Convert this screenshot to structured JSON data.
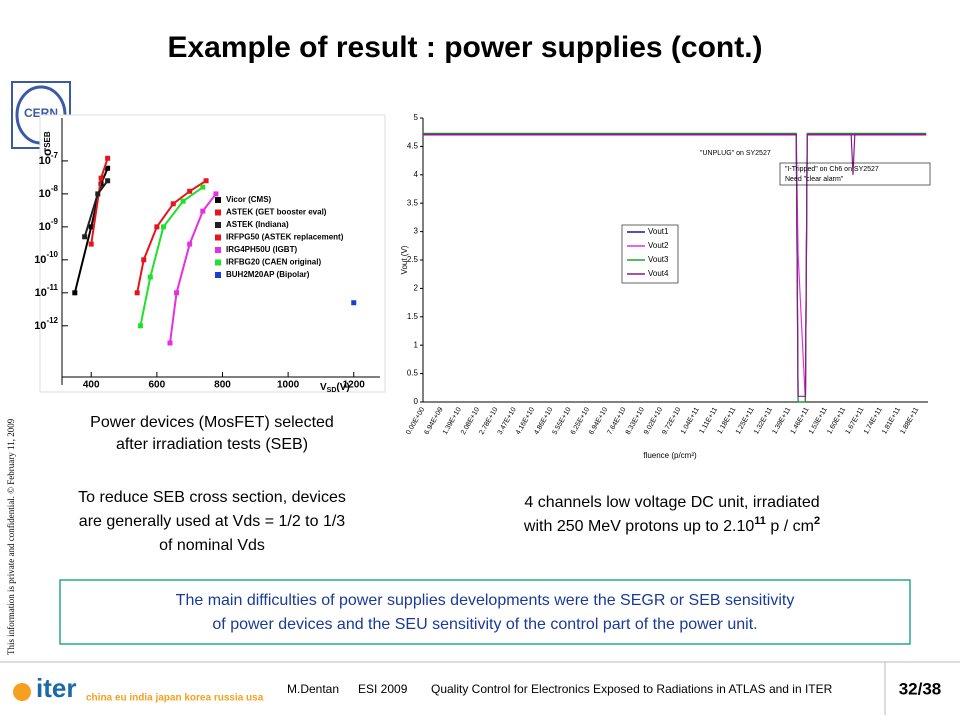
{
  "slide": {
    "title": "Example of result : power supplies (cont.)",
    "logo_top": "CERN",
    "side_note": "This information is private and confidential. © February 11, 2009",
    "left_caption": [
      "Power devices (MosFET) selected",
      "after irradiation tests (SEB)"
    ],
    "left_text": [
      "To reduce SEB cross section, devices",
      "are generally used at Vds = 1/2 to 1/3",
      "of nominal Vds"
    ],
    "right_caption": {
      "line1": "4 channels low voltage DC unit, irradiated",
      "line2": "with 250 MeV protons up to 2.10",
      "sup1": "11",
      "mid": " p / cm",
      "sup2": "2"
    },
    "box_text": [
      "The main difficulties of power supplies developments were the SEGR or SEB sensitivity",
      "of power devices and the SEU sensitivity of the control part of the power unit."
    ],
    "footer": {
      "logo": "iter",
      "members": "china eu india japan korea russia usa",
      "author": "M.Dentan",
      "event": "ESI 2009",
      "talk": "Quality Control for Electronics Exposed to Radiations in ATLAS and in ITER",
      "page": "32/38"
    }
  },
  "chart_data": [
    {
      "type": "line",
      "ylabel": "σ",
      "ylabel_sub": "SEB",
      "xlabel": "V",
      "xlabel_sub": "SD",
      "xlabel_unit": "(V)",
      "log_scale": true,
      "xlim": [
        250,
        1280
      ],
      "ylim": [
        1.6e-14,
        2e-06
      ],
      "xticks": [
        400,
        600,
        800,
        1000,
        1200
      ],
      "yticks": [
        {
          "value": 1e-07,
          "base": "10",
          "exponent": "-7"
        },
        {
          "value": 1e-08,
          "base": "10",
          "exponent": "-8"
        },
        {
          "value": 1e-09,
          "base": "10",
          "exponent": "-9"
        },
        {
          "value": 1e-10,
          "base": "10",
          "exponent": "-10"
        },
        {
          "value": 1e-11,
          "base": "10",
          "exponent": "-11"
        },
        {
          "value": 1e-12,
          "base": "10",
          "exponent": "-12"
        }
      ],
      "series": [
        {
          "name": "Vicor (CMS)",
          "color": "#000000",
          "x": [
            350,
            400,
            430,
            450
          ],
          "values": [
            1e-11,
            1e-09,
            2e-08,
            6e-08
          ]
        },
        {
          "name": "ASTEK (GET booster eval)",
          "color": "#e8141c",
          "x": [
            400,
            430,
            450
          ],
          "values": [
            3e-10,
            3e-08,
            1.2e-07
          ]
        },
        {
          "name": "ASTEK (Indiana)",
          "color": "#202020",
          "x": [
            380,
            420,
            450
          ],
          "values": [
            5e-10,
            1e-08,
            2.5e-08
          ]
        },
        {
          "name": "IRFPG50 (ASTEK replacement)",
          "color": "#e8141c",
          "x": [
            540,
            560,
            600,
            650,
            700,
            750
          ],
          "values": [
            1e-11,
            1e-10,
            1e-09,
            5e-09,
            1.2e-08,
            2.5e-08
          ]
        },
        {
          "name": "IRG4PH50U (IGBT)",
          "color": "#e62fe0",
          "x": [
            640,
            660,
            700,
            740,
            780
          ],
          "values": [
            3e-13,
            1e-11,
            3e-10,
            3e-09,
            1e-08
          ]
        },
        {
          "name": "IRFBG20 (CAEN original)",
          "color": "#1fe02a",
          "x": [
            550,
            580,
            620,
            680,
            740
          ],
          "values": [
            1e-12,
            3e-11,
            1e-09,
            6e-09,
            1.6e-08
          ]
        },
        {
          "name": "BUH2M20AP (Bipolar)",
          "color": "#1a3fd0",
          "x": [
            1200
          ],
          "values": [
            5e-12
          ]
        }
      ]
    },
    {
      "type": "line",
      "ylabel": "Vout (V)",
      "xlabel": "fluence (p/cm²)",
      "ylim": [
        0,
        5
      ],
      "yticks": [
        0,
        0.5,
        1,
        1.5,
        2,
        2.5,
        3,
        3.5,
        4,
        4.5,
        5
      ],
      "xlim": [
        0,
        27.6
      ],
      "categories": [
        "0.00E+00",
        "6.94E+09",
        "1.39E+10",
        "2.08E+10",
        "2.78E+10",
        "3.47E+10",
        "4.16E+10",
        "4.86E+10",
        "5.55E+10",
        "6.25E+10",
        "6.94E+10",
        "7.64E+10",
        "8.33E+10",
        "9.02E+10",
        "9.72E+10",
        "1.04E+11",
        "1.11E+11",
        "1.18E+11",
        "1.25E+11",
        "1.32E+11",
        "1.39E+11",
        "1.46E+11",
        "1.53E+11",
        "1.60E+11",
        "1.67E+11",
        "1.74E+11",
        "1.81E+11",
        "1.88E+11"
      ],
      "x": [
        0,
        20.4,
        20.5,
        20.9,
        21.0,
        23.4,
        23.5,
        23.6,
        27.5
      ],
      "series": [
        {
          "name": "Vout1",
          "color": "#1a1aa0",
          "values": [
            4.72,
            4.72,
            0,
            0,
            4.72,
            4.72,
            4.72,
            4.72,
            4.72
          ]
        },
        {
          "name": "Vout2",
          "color": "#e62fe0",
          "values": [
            4.7,
            4.7,
            2.6,
            0,
            4.7,
            4.7,
            4.7,
            4.7,
            4.7
          ]
        },
        {
          "name": "Vout3",
          "color": "#1fa02a",
          "values": [
            4.73,
            4.73,
            0,
            0,
            4.73,
            4.73,
            4.73,
            4.73,
            4.73
          ]
        },
        {
          "name": "Vout4",
          "color": "#8a1a8a",
          "values": [
            4.71,
            4.71,
            0.1,
            0.1,
            4.71,
            4.71,
            4.0,
            4.71,
            4.71
          ]
        }
      ],
      "annotations": [
        "\"UNPLUG\" on SY2527",
        "\"I-Tripped\" on Ch6 on SY2527",
        "Need \"clear alarm\""
      ]
    }
  ]
}
